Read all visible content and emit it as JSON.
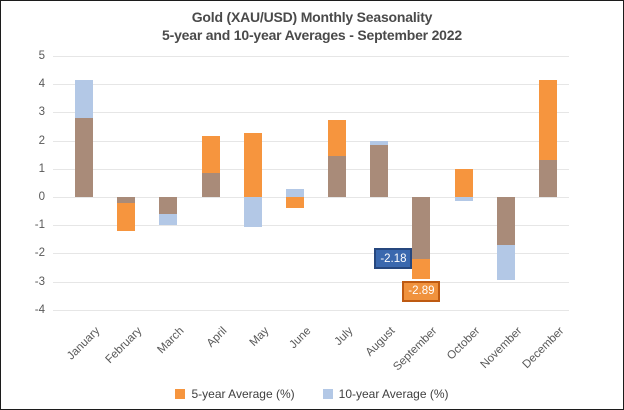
{
  "title": {
    "line1": "Gold (XAU/USD) Monthly Seasonality",
    "line2": "5-year and 10-year Averages - September 2022"
  },
  "legend": {
    "series1": "5-year Average (%)",
    "series2": "10-year Average (%)"
  },
  "colors": {
    "five_year": "#F6953E",
    "ten_year": "#B3C8E6",
    "overlap": "#A98B79",
    "gridline": "#E6E6E6",
    "axis_text": "#595959"
  },
  "chart_data": {
    "type": "bar",
    "title": "Gold (XAU/USD) Monthly Seasonality",
    "subtitle": "5-year and 10-year Averages - September 2022",
    "categories": [
      "January",
      "February",
      "March",
      "April",
      "May",
      "June",
      "July",
      "August",
      "September",
      "October",
      "November",
      "December"
    ],
    "series": [
      {
        "name": "5-year Average (%)",
        "color": "#F6953E",
        "values": [
          2.8,
          -1.2,
          -0.6,
          2.15,
          2.27,
          -0.4,
          2.72,
          1.85,
          -2.89,
          1.0,
          -1.7,
          4.15
        ]
      },
      {
        "name": "10-year Average (%)",
        "color": "#B3C8E6",
        "values": [
          4.15,
          -0.2,
          -1.0,
          0.85,
          -1.05,
          0.3,
          1.45,
          2.0,
          -2.18,
          -0.15,
          -2.95,
          1.3
        ]
      }
    ],
    "overlap_color": "#A98B79",
    "xlabel": "",
    "ylabel": "",
    "ylim": [
      -4,
      5
    ],
    "ytick_step": 1,
    "grid": true,
    "legend_position": "bottom",
    "annotations": [
      {
        "text": "-2.18",
        "month": "September",
        "series": "10-year Average (%)",
        "value": -2.18,
        "fill": "#3A68AE",
        "border": "#26477E",
        "placement": "left-of-bar"
      },
      {
        "text": "-2.89",
        "month": "September",
        "series": "5-year Average (%)",
        "value": -2.89,
        "fill": "#F0923D",
        "border": "#BE5A12",
        "placement": "below-bar"
      }
    ]
  }
}
